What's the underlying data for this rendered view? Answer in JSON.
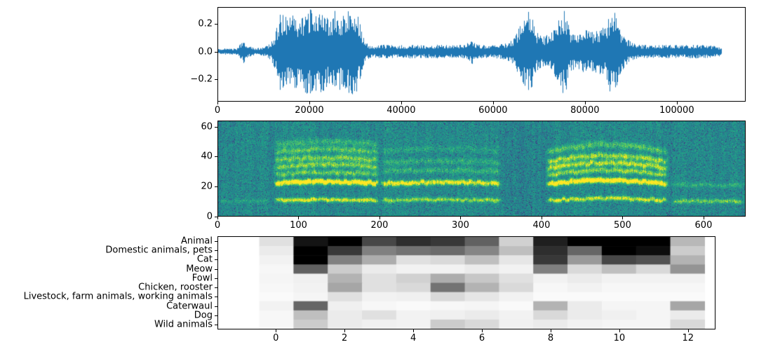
{
  "figure": {
    "background": "#ffffff",
    "text_color": "#000000"
  },
  "chart_data": [
    {
      "id": "waveform",
      "type": "line",
      "title": "",
      "xlabel": "",
      "ylabel": "",
      "line_color": "#1f77b4",
      "xlim": [
        0,
        115000
      ],
      "ylim": [
        -0.36,
        0.32
      ],
      "x_ticks": [
        0,
        20000,
        40000,
        60000,
        80000,
        100000
      ],
      "x_tick_labels": [
        "0",
        "20000",
        "40000",
        "60000",
        "80000",
        "100000"
      ],
      "y_ticks": [
        0.2,
        0.0,
        -0.2
      ],
      "y_tick_labels": [
        "0.2",
        "0.0",
        "−0.2"
      ],
      "description": "Audio waveform (amplitude vs sample index). Quiet intro, loud vocalization burst ~13000-31000, quiet middle with small spike near 55000, second loud section ~65000-90000 with peaks near 68000, 75000 and 86000, quiet tail to ~110000.",
      "envelope": [
        [
          0,
          0.018
        ],
        [
          2000,
          0.025
        ],
        [
          4000,
          0.02
        ],
        [
          5200,
          0.07
        ],
        [
          5600,
          0.12
        ],
        [
          6000,
          0.05
        ],
        [
          8000,
          0.025
        ],
        [
          10000,
          0.03
        ],
        [
          11500,
          0.06
        ],
        [
          12500,
          0.13
        ],
        [
          13500,
          0.28
        ],
        [
          15000,
          0.25
        ],
        [
          16500,
          0.3
        ],
        [
          18000,
          0.22
        ],
        [
          19500,
          0.33
        ],
        [
          21000,
          0.28
        ],
        [
          22500,
          0.3
        ],
        [
          24000,
          0.26
        ],
        [
          25500,
          0.3
        ],
        [
          27000,
          0.27
        ],
        [
          28500,
          0.3
        ],
        [
          30000,
          0.32
        ],
        [
          31000,
          0.2
        ],
        [
          32000,
          0.07
        ],
        [
          33500,
          0.04
        ],
        [
          36000,
          0.05
        ],
        [
          39000,
          0.045
        ],
        [
          42000,
          0.05
        ],
        [
          45000,
          0.045
        ],
        [
          48000,
          0.05
        ],
        [
          51000,
          0.045
        ],
        [
          54000,
          0.05
        ],
        [
          55500,
          0.09
        ],
        [
          56500,
          0.05
        ],
        [
          59000,
          0.045
        ],
        [
          61000,
          0.05
        ],
        [
          63000,
          0.06
        ],
        [
          64500,
          0.09
        ],
        [
          65500,
          0.16
        ],
        [
          66500,
          0.22
        ],
        [
          67500,
          0.3
        ],
        [
          68500,
          0.26
        ],
        [
          69500,
          0.14
        ],
        [
          71000,
          0.11
        ],
        [
          72500,
          0.13
        ],
        [
          74000,
          0.2
        ],
        [
          75200,
          0.32
        ],
        [
          76000,
          0.28
        ],
        [
          77000,
          0.14
        ],
        [
          78500,
          0.12
        ],
        [
          80000,
          0.16
        ],
        [
          81500,
          0.14
        ],
        [
          83000,
          0.16
        ],
        [
          84500,
          0.18
        ],
        [
          85800,
          0.32
        ],
        [
          86800,
          0.3
        ],
        [
          87800,
          0.16
        ],
        [
          89000,
          0.1
        ],
        [
          90500,
          0.06
        ],
        [
          92000,
          0.05
        ],
        [
          95000,
          0.045
        ],
        [
          98000,
          0.05
        ],
        [
          101000,
          0.045
        ],
        [
          104000,
          0.05
        ],
        [
          107000,
          0.045
        ],
        [
          109500,
          0.035
        ],
        [
          110000,
          0.02
        ]
      ]
    },
    {
      "id": "spectrogram",
      "type": "heatmap",
      "colormap": "viridis",
      "title": "",
      "xlabel": "",
      "ylabel": "",
      "xlim": [
        0,
        652
      ],
      "ylim": [
        0,
        64
      ],
      "x_ticks": [
        0,
        100,
        200,
        300,
        400,
        500,
        600
      ],
      "x_tick_labels": [
        "0",
        "100",
        "200",
        "300",
        "400",
        "500",
        "600"
      ],
      "y_ticks": [
        0,
        20,
        40,
        60
      ],
      "y_tick_labels": [
        "0",
        "20",
        "40",
        "60"
      ],
      "background_level": 0.45,
      "description": "Log-mel spectrogram: noisy teal background with harmonic stacks during two vocalization groups; brightest band near bin 22, fundamental near bin 10, upper harmonics 28-48.",
      "segments": [
        {
          "x0": 0,
          "x1": 68,
          "arch": 0.0,
          "bands": [
            {
              "f": 10,
              "a": 0.12
            }
          ]
        },
        {
          "x0": 68,
          "x1": 200,
          "arch": 0.05,
          "bands": [
            {
              "f": 10.5,
              "a": 0.62
            },
            {
              "f": 22,
              "a": 1.0
            },
            {
              "f": 28,
              "a": 0.38
            },
            {
              "f": 33,
              "a": 0.42
            },
            {
              "f": 37.5,
              "a": 0.4
            },
            {
              "f": 43,
              "a": 0.32
            },
            {
              "f": 48,
              "a": 0.22
            }
          ]
        },
        {
          "x0": 200,
          "x1": 352,
          "arch": 0.03,
          "bands": [
            {
              "f": 10.5,
              "a": 0.45
            },
            {
              "f": 22,
              "a": 0.7
            },
            {
              "f": 30,
              "a": 0.2
            },
            {
              "f": 36,
              "a": 0.18
            },
            {
              "f": 44,
              "a": 0.12
            }
          ]
        },
        {
          "x0": 405,
          "x1": 558,
          "arch": 0.12,
          "bands": [
            {
              "f": 10.5,
              "a": 0.6
            },
            {
              "f": 21.5,
              "a": 1.0
            },
            {
              "f": 27.5,
              "a": 0.45
            },
            {
              "f": 32,
              "a": 0.55
            },
            {
              "f": 36.5,
              "a": 0.5
            },
            {
              "f": 43,
              "a": 0.3
            }
          ]
        },
        {
          "x0": 560,
          "x1": 652,
          "arch": 0.0,
          "bands": [
            {
              "f": 10,
              "a": 0.4
            },
            {
              "f": 21,
              "a": 0.18
            }
          ]
        }
      ]
    },
    {
      "id": "class-scores",
      "type": "heatmap",
      "colormap": "gray_r",
      "title": "",
      "xlabel": "",
      "ylabel": "",
      "xlim": [
        -1.7,
        12.8
      ],
      "x_ticks": [
        0,
        2,
        4,
        6,
        8,
        10,
        12
      ],
      "x_tick_labels": [
        "0",
        "2",
        "4",
        "6",
        "8",
        "10",
        "12"
      ],
      "col_start": 0,
      "col_step": 1,
      "rows": [
        "Animal",
        "Domestic animals, pets",
        "Cat",
        "Meow",
        "Fowl",
        "Chicken, rooster",
        "Livestock, farm animals, working animals",
        "Caterwaul",
        "Dog",
        "Wild animals"
      ],
      "values": [
        [
          0.12,
          0.92,
          1.0,
          0.72,
          0.82,
          0.78,
          0.62,
          0.18,
          0.88,
          1.0,
          1.0,
          1.0,
          0.28
        ],
        [
          0.08,
          1.0,
          0.78,
          0.5,
          0.55,
          0.58,
          0.48,
          0.25,
          0.82,
          0.6,
          1.0,
          0.95,
          0.2
        ],
        [
          0.05,
          1.0,
          0.5,
          0.32,
          0.12,
          0.15,
          0.25,
          0.1,
          0.78,
          0.4,
          0.72,
          0.68,
          0.3
        ],
        [
          0.03,
          0.62,
          0.2,
          0.08,
          0.05,
          0.05,
          0.08,
          0.05,
          0.5,
          0.15,
          0.25,
          0.15,
          0.42
        ],
        [
          0.04,
          0.06,
          0.3,
          0.12,
          0.18,
          0.32,
          0.22,
          0.12,
          0.05,
          0.08,
          0.05,
          0.05,
          0.05
        ],
        [
          0.03,
          0.05,
          0.35,
          0.12,
          0.15,
          0.55,
          0.3,
          0.15,
          0.03,
          0.05,
          0.03,
          0.03,
          0.03
        ],
        [
          0.02,
          0.04,
          0.12,
          0.05,
          0.06,
          0.15,
          0.1,
          0.05,
          0.02,
          0.02,
          0.02,
          0.02,
          0.02
        ],
        [
          0.05,
          0.6,
          0.06,
          0.03,
          0.02,
          0.03,
          0.04,
          0.02,
          0.3,
          0.08,
          0.04,
          0.04,
          0.35
        ],
        [
          0.03,
          0.25,
          0.08,
          0.12,
          0.05,
          0.06,
          0.08,
          0.05,
          0.15,
          0.08,
          0.06,
          0.04,
          0.08
        ],
        [
          0.03,
          0.2,
          0.08,
          0.06,
          0.05,
          0.2,
          0.15,
          0.06,
          0.08,
          0.05,
          0.04,
          0.04,
          0.15
        ]
      ]
    }
  ]
}
